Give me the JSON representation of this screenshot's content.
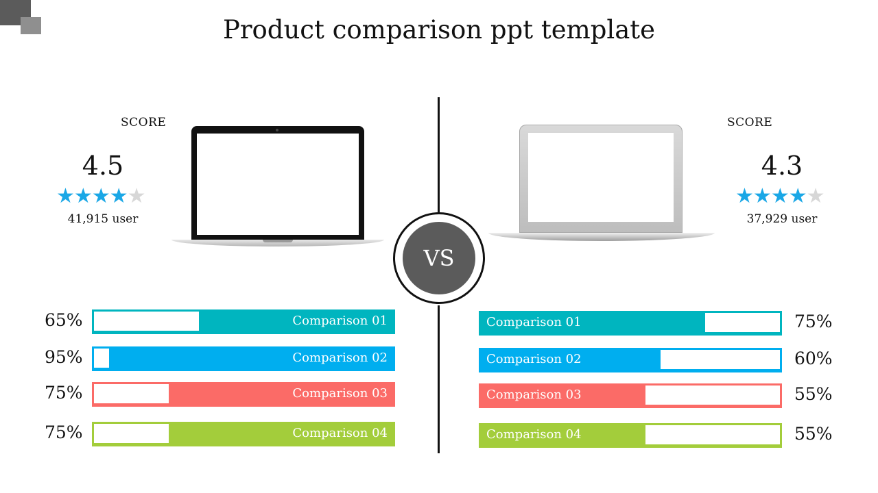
{
  "title": "Product comparison ppt template",
  "vs_label": "VS",
  "colors": {
    "teal": "#00b5bf",
    "blue": "#00aeef",
    "coral": "#fb6b67",
    "green": "#a3cd3b",
    "star_on": "#1aa7e6",
    "star_off": "#d7d7d7",
    "dark_gray": "#5b5b5b"
  },
  "left_product": {
    "score_label": "SCORE",
    "score": "4.5",
    "stars_filled": 4,
    "stars_total": 5,
    "users": "41,915 user",
    "bars": [
      {
        "label": "Comparison 01",
        "percent": "65%",
        "value": 65,
        "color": "teal"
      },
      {
        "label": "Comparison 02",
        "percent": "95%",
        "value": 95,
        "color": "blue"
      },
      {
        "label": "Comparison 03",
        "percent": "75%",
        "value": 75,
        "color": "coral"
      },
      {
        "label": "Comparison 04",
        "percent": "75%",
        "value": 75,
        "color": "green"
      }
    ]
  },
  "right_product": {
    "score_label": "SCORE",
    "score": "4.3",
    "stars_filled": 4,
    "stars_total": 5,
    "users": "37,929 user",
    "bars": [
      {
        "label": "Comparison 01",
        "percent": "75%",
        "value": 75,
        "color": "teal"
      },
      {
        "label": "Comparison 02",
        "percent": "60%",
        "value": 60,
        "color": "blue"
      },
      {
        "label": "Comparison 03",
        "percent": "55%",
        "value": 55,
        "color": "coral"
      },
      {
        "label": "Comparison 04",
        "percent": "55%",
        "value": 55,
        "color": "green"
      }
    ]
  }
}
